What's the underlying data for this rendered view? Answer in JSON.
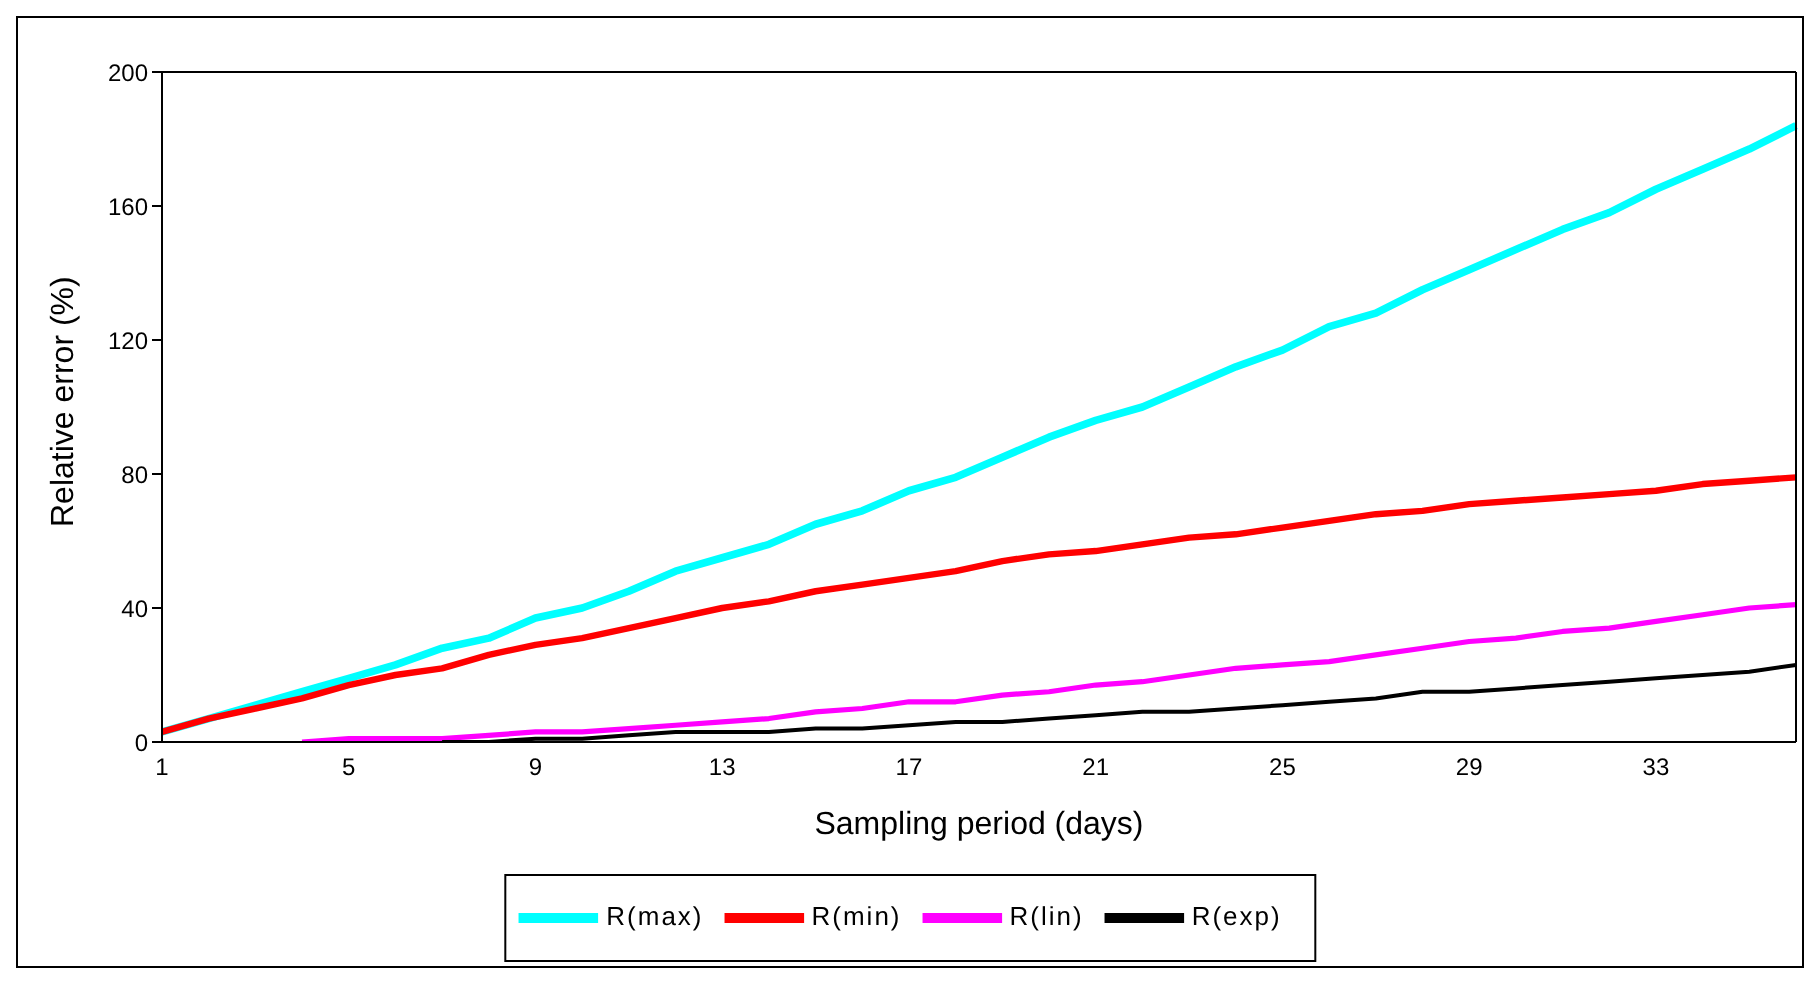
{
  "chart_data": {
    "type": "line",
    "xlabel": "Sampling period (days)",
    "ylabel": "Relative error (%)",
    "categories": [
      "1",
      null,
      null,
      null,
      "5",
      null,
      null,
      null,
      "9",
      null,
      null,
      null,
      "13",
      null,
      null,
      null,
      "17",
      null,
      null,
      null,
      "21",
      null,
      null,
      null,
      "25",
      null,
      null,
      null,
      "29",
      null,
      null,
      null,
      "33",
      null,
      null,
      null
    ],
    "ylim": [
      0,
      200
    ],
    "yticks": [
      0,
      40,
      80,
      120,
      160,
      200
    ],
    "grid": false,
    "legend": "bottom",
    "marker": "none",
    "line_style": "solid",
    "series": [
      {
        "name": "R(max)",
        "color": "#00ffff",
        "values": [
          3,
          7,
          11,
          15,
          19,
          23,
          28,
          31,
          37,
          40,
          45,
          51,
          55,
          59,
          65,
          69,
          75,
          79,
          85,
          91,
          96,
          100,
          106,
          112,
          117,
          124,
          128,
          135,
          141,
          147,
          153,
          158,
          165,
          171,
          177,
          184
        ]
      },
      {
        "name": "R(min)",
        "color": "#ff0000",
        "values": [
          3,
          7,
          10,
          13,
          17,
          20,
          22,
          26,
          29,
          31,
          34,
          37,
          40,
          42,
          45,
          47,
          49,
          51,
          54,
          56,
          57,
          59,
          61,
          62,
          64,
          66,
          68,
          69,
          71,
          72,
          73,
          74,
          75,
          77,
          78,
          79
        ]
      },
      {
        "name": "R(lin)",
        "color": "#ff00ff",
        "values": [
          null,
          null,
          null,
          0,
          1,
          1,
          1,
          2,
          3,
          3,
          4,
          5,
          6,
          7,
          9,
          10,
          12,
          12,
          14,
          15,
          17,
          18,
          20,
          22,
          23,
          24,
          26,
          28,
          30,
          31,
          33,
          34,
          36,
          38,
          40,
          41
        ]
      },
      {
        "name": "R(exp)",
        "color": "#000000",
        "values": [
          null,
          null,
          null,
          null,
          null,
          null,
          0,
          0,
          1,
          1,
          2,
          3,
          3,
          3,
          4,
          4,
          5,
          6,
          6,
          7,
          8,
          9,
          9,
          10,
          11,
          12,
          13,
          15,
          15,
          16,
          17,
          18,
          19,
          20,
          21,
          23
        ]
      }
    ]
  }
}
